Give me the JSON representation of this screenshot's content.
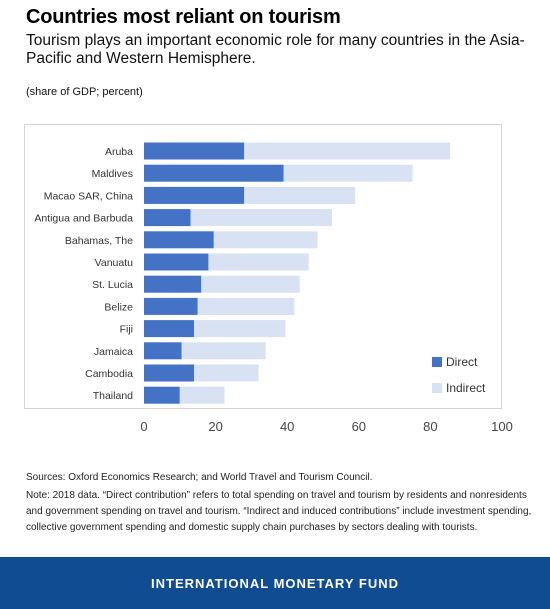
{
  "header": {
    "title": "Countries most reliant on tourism",
    "subtitle": "Tourism plays an important economic role for many countries in the Asia-Pacific and Western Hemisphere.",
    "unit": "(share of GDP; percent)"
  },
  "chart_data": {
    "type": "bar",
    "orientation": "horizontal",
    "stacked": true,
    "categories": [
      "Aruba",
      "Maldives",
      "Macao SAR, China",
      "Antigua and Barbuda",
      "Bahamas, The",
      "Vanuatu",
      "St. Lucia",
      "Belize",
      "Fiji",
      "Jamaica",
      "Cambodia",
      "Thailand"
    ],
    "series": [
      {
        "name": "Direct",
        "color": "#4472c4",
        "values": [
          28,
          39,
          28,
          13,
          19.5,
          18,
          16,
          15,
          14,
          10.5,
          14,
          10
        ]
      },
      {
        "name": "Indirect",
        "color": "#d9e2f3",
        "values": [
          57.5,
          36,
          31,
          39.5,
          29,
          28,
          27.5,
          27,
          25.5,
          23.5,
          18,
          12.5
        ]
      }
    ],
    "xlim": [
      0,
      100
    ],
    "xticks": [
      0,
      20,
      40,
      60,
      80,
      100
    ],
    "grid": false,
    "legend_position": "bottom-right"
  },
  "notes": {
    "sources": "Sources: Oxford Economics Research; and World Travel and Tourism Council.",
    "note": "Note: 2018 data. “Direct contribution” refers to total spending on travel and tourism by residents and nonresidents and government spending on travel and tourism. “Indirect and induced contributions” include investment spending, collective government spending and domestic supply chain purchases by sectors dealing with tourists."
  },
  "footer": {
    "brand": "INTERNATIONAL MONETARY FUND"
  }
}
